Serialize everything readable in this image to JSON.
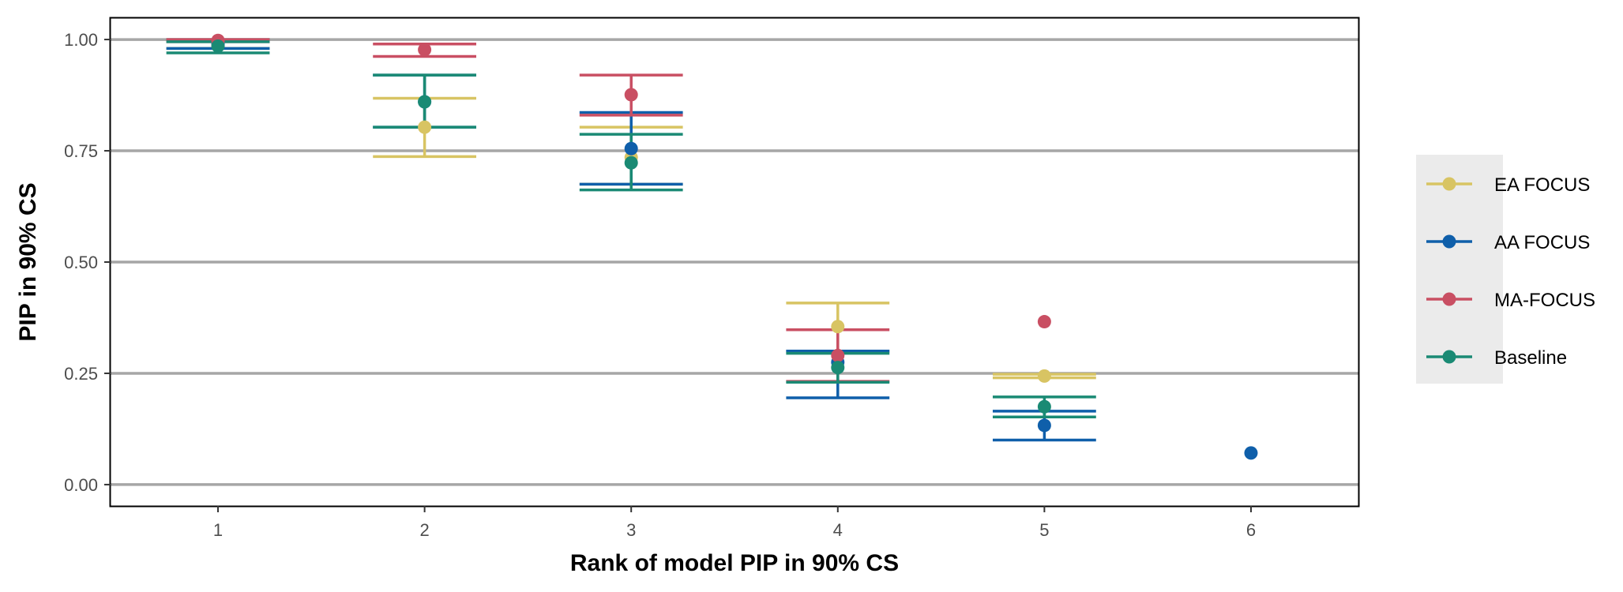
{
  "chart_data": {
    "type": "scatter",
    "xlabel": "Rank of model PIP in 90% CS",
    "ylabel": "PIP in 90% CS",
    "x": [
      1,
      2,
      3,
      4,
      5,
      6
    ],
    "xlim": [
      0.48,
      6.52
    ],
    "ylim": [
      -0.048,
      1.048
    ],
    "yticks": [
      "0.00",
      "0.25",
      "0.50",
      "0.75",
      "1.00"
    ],
    "ytick_values": [
      0,
      0.25,
      0.5,
      0.75,
      1.0
    ],
    "grid": "horizontal major",
    "legend_position": "right",
    "series": [
      {
        "name": "EA FOCUS",
        "color": "#D8C463",
        "points": [
          {
            "x": 1,
            "y": 0.99,
            "lo": 0.98,
            "hi": 1.0
          },
          {
            "x": 2,
            "y": 0.803,
            "lo": 0.737,
            "hi": 0.868
          },
          {
            "x": 3,
            "y": 0.735,
            "lo": 0.675,
            "hi": 0.803
          },
          {
            "x": 4,
            "y": 0.355,
            "lo": 0.3,
            "hi": 0.408
          },
          {
            "x": 5,
            "y": 0.244,
            "lo": 0.24,
            "hi": 0.248
          }
        ]
      },
      {
        "name": "AA FOCUS",
        "color": "#0F5FAA",
        "points": [
          {
            "x": 1,
            "y": 0.99,
            "lo": 0.98,
            "hi": 1.0
          },
          {
            "x": 2,
            "y": 0.86,
            "lo": 0.803,
            "hi": 0.92
          },
          {
            "x": 3,
            "y": 0.755,
            "lo": 0.675,
            "hi": 0.836
          },
          {
            "x": 4,
            "y": 0.275,
            "lo": 0.195,
            "hi": 0.3
          },
          {
            "x": 5,
            "y": 0.133,
            "lo": 0.1,
            "hi": 0.165
          },
          {
            "x": 6,
            "y": 0.071
          }
        ]
      },
      {
        "name": "MA-FOCUS",
        "color": "#C94F63",
        "points": [
          {
            "x": 1,
            "y": 0.998,
            "lo": 0.995,
            "hi": 1.0
          },
          {
            "x": 2,
            "y": 0.977,
            "lo": 0.962,
            "hi": 0.99
          },
          {
            "x": 3,
            "y": 0.876,
            "lo": 0.83,
            "hi": 0.92
          },
          {
            "x": 4,
            "y": 0.29,
            "lo": 0.232,
            "hi": 0.348
          },
          {
            "x": 5,
            "y": 0.366
          }
        ]
      },
      {
        "name": "Baseline",
        "color": "#1A8A74",
        "points": [
          {
            "x": 1,
            "y": 0.985,
            "lo": 0.97,
            "hi": 0.995
          },
          {
            "x": 2,
            "y": 0.86,
            "lo": 0.803,
            "hi": 0.92
          },
          {
            "x": 3,
            "y": 0.723,
            "lo": 0.662,
            "hi": 0.787
          },
          {
            "x": 4,
            "y": 0.263,
            "lo": 0.23,
            "hi": 0.295
          },
          {
            "x": 5,
            "y": 0.175,
            "lo": 0.152,
            "hi": 0.197
          }
        ]
      }
    ]
  }
}
